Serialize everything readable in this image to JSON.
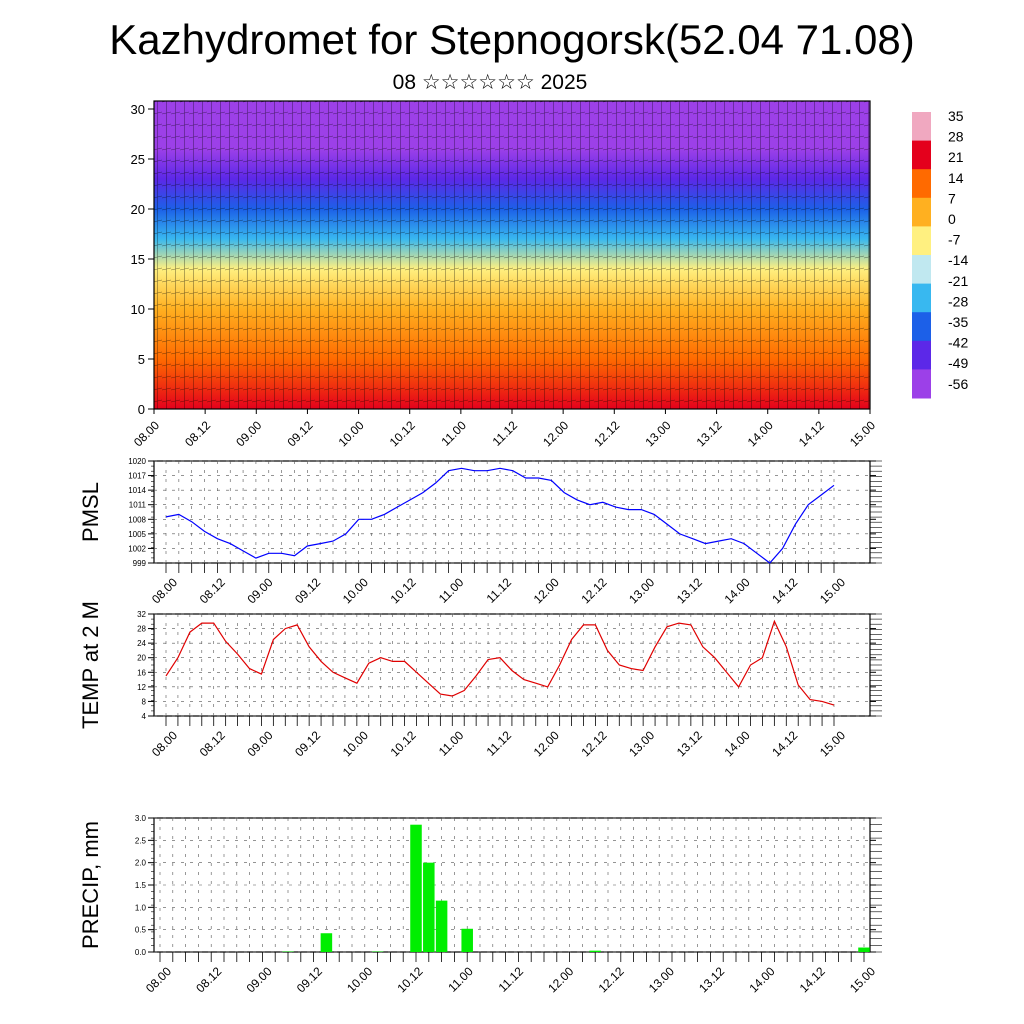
{
  "header": {
    "title": "Kazhydromet for Stepnogorsk(52.04 71.08)",
    "date_line": "08 ☆☆☆☆☆☆ 2025"
  },
  "time_labels": [
    "08.00",
    "08.12",
    "09.00",
    "09.12",
    "10.00",
    "10.12",
    "11.00",
    "11.12",
    "12.00",
    "12.12",
    "13.00",
    "13.12",
    "14.00",
    "14.12",
    "15.00"
  ],
  "cross_section": {
    "type": "heatmap",
    "variable": "temperature",
    "y_ticks": [
      "0",
      "5",
      "10",
      "15",
      "20",
      "25",
      "30"
    ],
    "ylim": [
      0,
      30.8
    ],
    "colorbar_labels": [
      "35",
      "28",
      "21",
      "14",
      "7",
      "0",
      "-7",
      "-14",
      "-21",
      "-28",
      "-35",
      "-42",
      "-49",
      "-56"
    ],
    "profile_levels": [
      0,
      5,
      10,
      14,
      17,
      20,
      23,
      26,
      30
    ],
    "profile_values": [
      21,
      14,
      4,
      -7,
      -21,
      -35,
      -49,
      -56,
      -56
    ],
    "colors": [
      "#f0a8c0",
      "#e4001c",
      "#ff6a00",
      "#ffb020",
      "#fff080",
      "#c0e8f0",
      "#38b8f0",
      "#1c60e8",
      "#5c28e8",
      "#9c40e8"
    ]
  },
  "chart_data": [
    {
      "type": "line",
      "ylabel": "PMSL",
      "ylim": [
        999,
        1020
      ],
      "y_ticks": [
        "1020",
        "1017",
        "1014",
        "1011",
        "1008",
        "1005",
        "1002",
        "999"
      ],
      "color": "#0000ff",
      "x_step_hours": 3,
      "values": [
        1008.5,
        1009,
        1007.5,
        1005.5,
        1004,
        1003,
        1001.5,
        1000,
        1001,
        1001,
        1000.5,
        1002.5,
        1003,
        1003.5,
        1005,
        1008,
        1008,
        1009,
        1010.5,
        1012,
        1013.5,
        1015.5,
        1018,
        1018.5,
        1018,
        1018,
        1018.5,
        1018,
        1016.5,
        1016.5,
        1016,
        1013.5,
        1012,
        1011,
        1011.5,
        1010.5,
        1010,
        1010,
        1009,
        1007,
        1005,
        1004,
        1003,
        1003.5,
        1004,
        1003,
        1001,
        999,
        1002,
        1007,
        1011,
        1013,
        1015
      ]
    },
    {
      "type": "line",
      "ylabel": "TEMP at 2 M",
      "ylim": [
        4,
        32
      ],
      "y_ticks": [
        "32",
        "28",
        "24",
        "20",
        "16",
        "12",
        "8",
        "4"
      ],
      "color": "#e00000",
      "x_step_hours": 3,
      "values": [
        15,
        20,
        27,
        29.5,
        29.5,
        24.5,
        21,
        17,
        15.5,
        25,
        28,
        29,
        23,
        19,
        16,
        14.5,
        13,
        18.5,
        20,
        19,
        19,
        16,
        13,
        10,
        9.5,
        11,
        15,
        19.5,
        20,
        16.5,
        14,
        13,
        12,
        18,
        25,
        29,
        29,
        22,
        18,
        17,
        16.5,
        23,
        28.5,
        29.5,
        29,
        23,
        20,
        16,
        12,
        18,
        20,
        30,
        23,
        12.5,
        8.5,
        8,
        7
      ]
    },
    {
      "type": "bar",
      "ylabel": "PRECIP, mm",
      "ylim": [
        0,
        3
      ],
      "y_ticks": [
        "3.0",
        "2.5",
        "2.0",
        "1.5",
        "1.0",
        "0.5",
        "0.0"
      ],
      "color": "#00ee00",
      "x_step_hours": 3,
      "values": [
        0,
        0,
        0,
        0,
        0,
        0,
        0,
        0,
        0,
        0,
        0.01,
        0,
        0,
        0.42,
        0,
        0,
        0,
        0.01,
        0,
        0,
        2.85,
        2.0,
        1.15,
        0,
        0.52,
        0,
        0,
        0,
        0,
        0,
        0,
        0,
        0,
        0,
        0.03,
        0,
        0,
        0,
        0,
        0,
        0,
        0,
        0,
        0,
        0,
        0,
        0,
        0,
        0,
        0,
        0,
        0,
        0,
        0,
        0,
        0.1
      ]
    }
  ]
}
